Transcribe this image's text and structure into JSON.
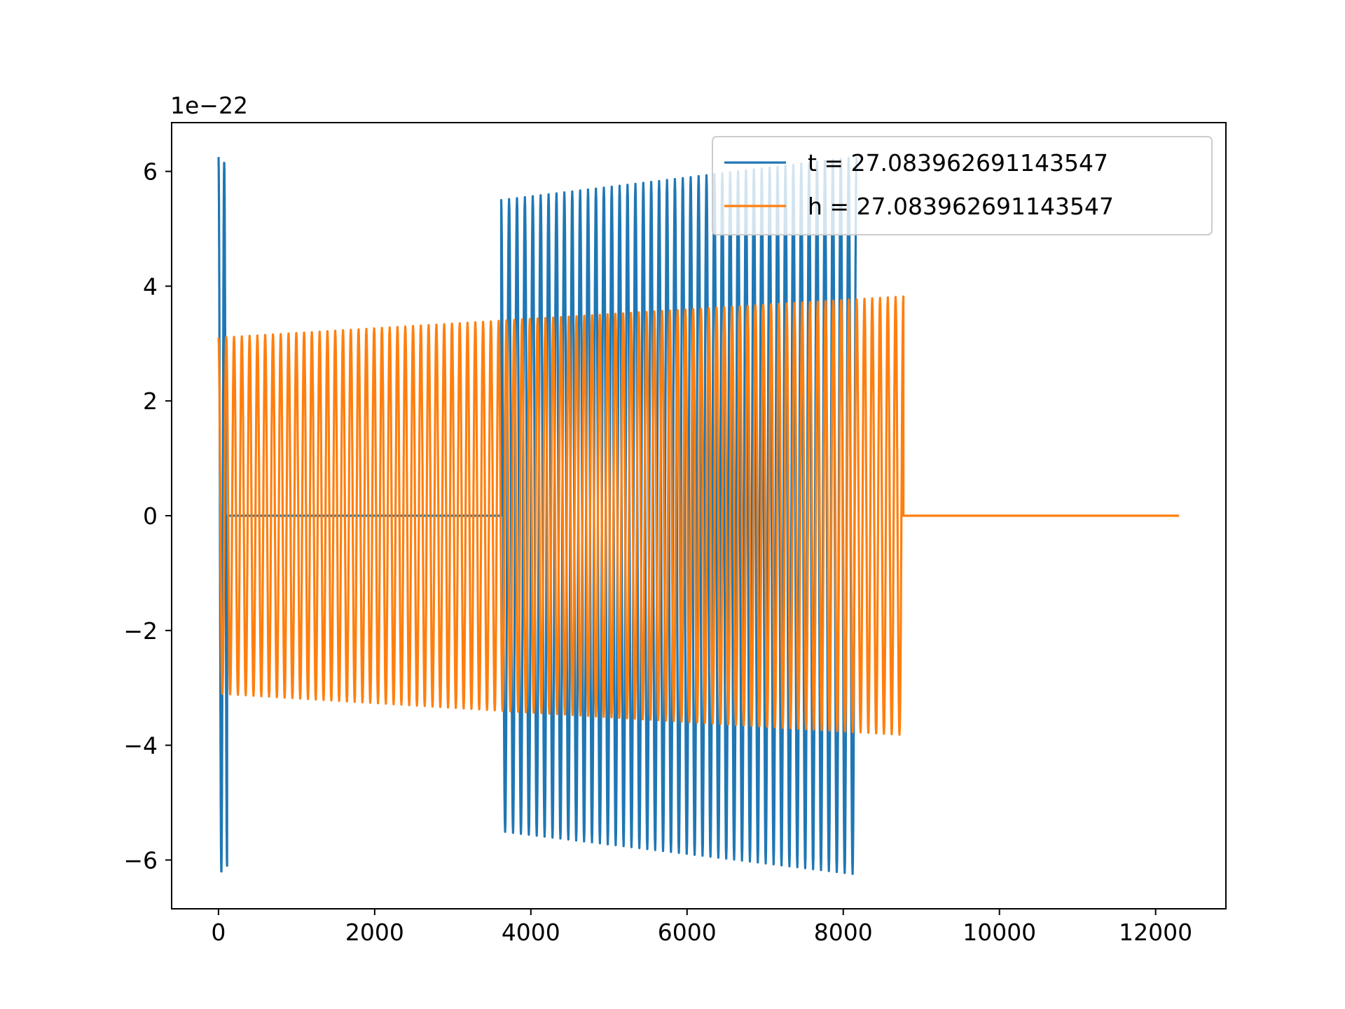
{
  "chart_data": {
    "type": "line",
    "title": "",
    "xlabel": "",
    "ylabel": "",
    "y_scale_label": "1e−22",
    "y_multiplier": 1e-22,
    "xlim": [
      -600,
      12900
    ],
    "ylim": [
      -6.85,
      6.85
    ],
    "xticks": [
      0,
      2000,
      4000,
      6000,
      8000,
      10000,
      12000
    ],
    "xtick_labels": [
      "0",
      "2000",
      "4000",
      "6000",
      "8000",
      "10000",
      "12000"
    ],
    "yticks": [
      -6,
      -4,
      -2,
      0,
      2,
      4,
      6
    ],
    "ytick_labels": [
      "−6",
      "−4",
      "−2",
      "0",
      "2",
      "4",
      "6"
    ],
    "grid": false,
    "legend": {
      "placement": "upper right"
    },
    "series": [
      {
        "name": "t = 27.083962691143547",
        "color": "#1f77b4",
        "x_start": 0,
        "x_end": 8170,
        "segments": [
          {
            "x_from": 0,
            "x_to": 110,
            "envelope": [
              6.25,
              6.1
            ],
            "cycles": 1.5
          },
          {
            "x_from": 110,
            "x_to": 3620,
            "envelope": [
              0,
              0
            ]
          },
          {
            "x_from": 3620,
            "x_to": 8170,
            "envelope": [
              5.5,
              6.25
            ],
            "cycles": 45
          }
        ]
      },
      {
        "name": "h = 27.083962691143547",
        "color": "#ff7f0e",
        "x_start": 0,
        "x_end": 12300,
        "segments": [
          {
            "x_from": 0,
            "x_to": 8770,
            "envelope": [
              3.1,
              3.82
            ],
            "cycles": 88
          },
          {
            "x_from": 8770,
            "x_to": 12300,
            "envelope": [
              0,
              0
            ]
          }
        ]
      }
    ]
  }
}
